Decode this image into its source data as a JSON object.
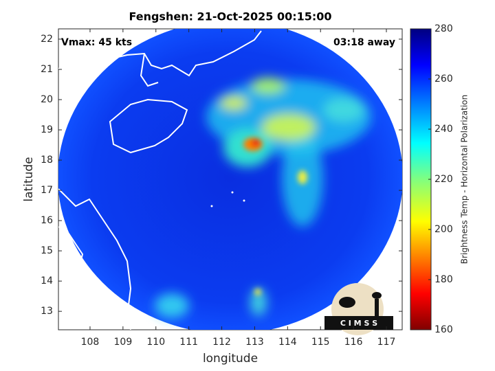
{
  "chart_data": {
    "type": "map",
    "title": "Fengshen: 21-Oct-2025 00:15:00",
    "xlabel": "longitude",
    "ylabel": "latitude",
    "xlim": [
      107.04,
      117.48
    ],
    "ylim": [
      12.39,
      22.34
    ],
    "xticks": [
      108,
      109,
      110,
      111,
      112,
      113,
      114,
      115,
      116,
      117
    ],
    "yticks": [
      13,
      14,
      15,
      16,
      17,
      18,
      19,
      20,
      21,
      22
    ],
    "annotations": [
      "Vmax: 45 kts",
      "03:18 away"
    ],
    "colorbar": {
      "label": "Brightness Temp - Horizontal Polarization",
      "lim": [
        160,
        280
      ],
      "ticks": [
        160,
        180,
        200,
        220,
        240,
        260,
        280
      ]
    },
    "logo": "C I M S S"
  }
}
